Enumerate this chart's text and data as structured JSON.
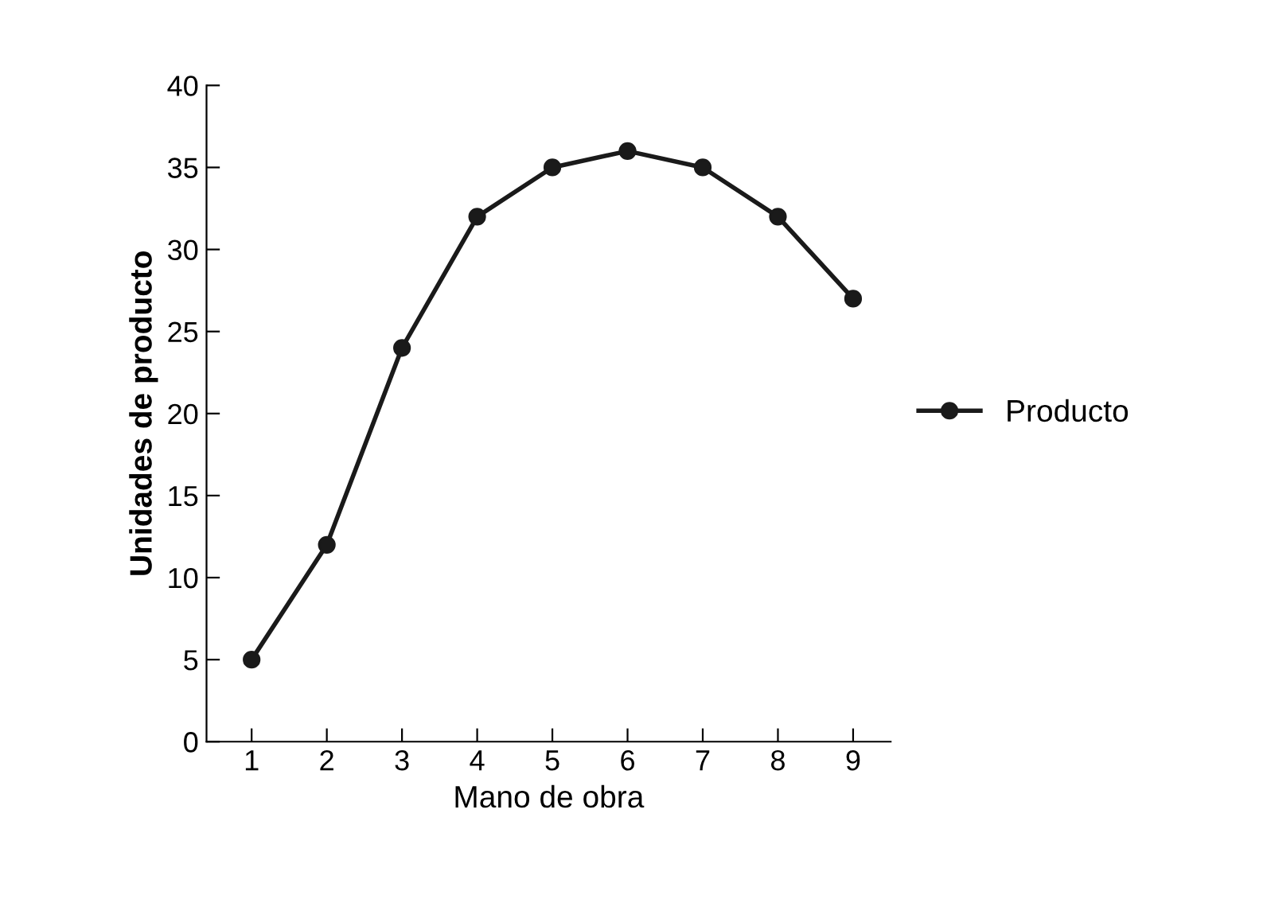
{
  "chart_data": {
    "type": "line",
    "xlabel": "Mano de obra",
    "ylabel": "Unidades de producto",
    "x": [
      1,
      2,
      3,
      4,
      5,
      6,
      7,
      8,
      9
    ],
    "series": [
      {
        "name": "Producto",
        "color": "#1a1a1a",
        "values": [
          5,
          12,
          24,
          32,
          35,
          36,
          35,
          32,
          27
        ]
      }
    ],
    "xlim": [
      0.4,
      9.5
    ],
    "xticks": [
      1,
      2,
      3,
      4,
      5,
      6,
      7,
      8,
      9
    ],
    "ylim": [
      0,
      40
    ],
    "yticks": [
      0,
      5,
      10,
      15,
      20,
      25,
      30,
      35,
      40
    ],
    "marker": "circle",
    "line_style": "solid",
    "grid": false,
    "legend": "right"
  }
}
